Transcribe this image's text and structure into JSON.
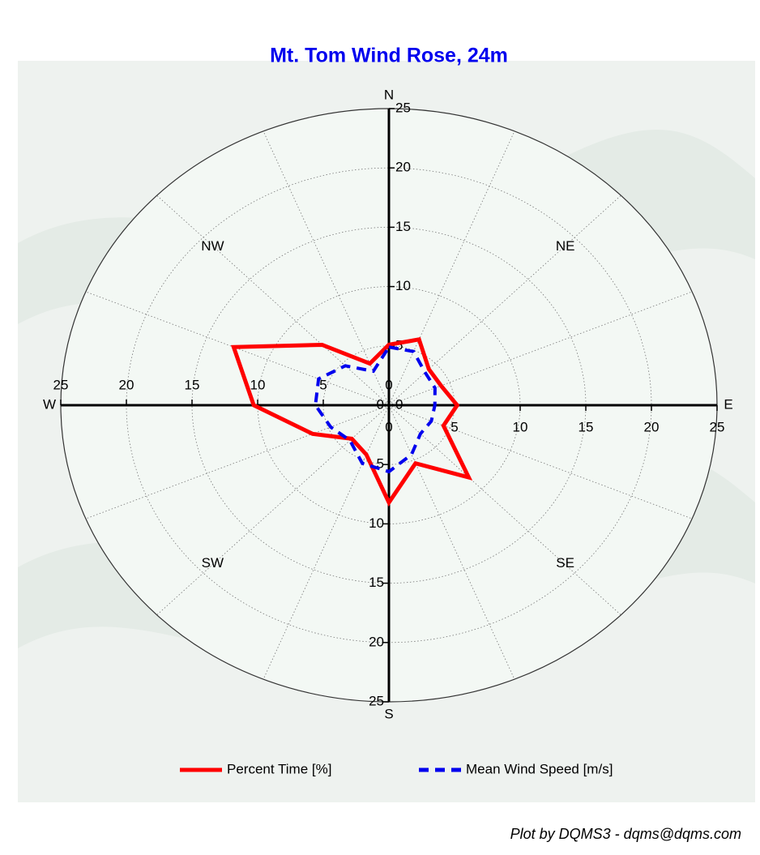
{
  "chart_data": {
    "type": "polar",
    "title": "Mt. Tom Wind Rose, 24m",
    "footer": "Plot by DQMS3 - dqms@dqms.com",
    "categories": [
      "N",
      null,
      "NE",
      null,
      "E",
      null,
      "SE",
      null,
      "S",
      null,
      "SW",
      null,
      "W",
      null,
      "NW",
      null
    ],
    "series": [
      {
        "name": "Percent Time [%]",
        "color": "#ff0000",
        "dash": false,
        "values": [
          5.1,
          6.0,
          4.3,
          4.3,
          5.2,
          4.5,
          8.6,
          5.3,
          8.2,
          4.5,
          4.0,
          6.3,
          10.3,
          12.8,
          7.2,
          3.8
        ]
      },
      {
        "name": "Mean Wind Speed [m/s]",
        "color": "#0000ee",
        "dash": true,
        "values": [
          4.9,
          4.9,
          3.9,
          3.8,
          3.5,
          3.5,
          3.4,
          4.5,
          5.6,
          5.3,
          4.2,
          4.8,
          5.6,
          5.8,
          4.7,
          3.1
        ]
      }
    ],
    "rlim": [
      0,
      25
    ],
    "rticks": [
      0,
      5,
      10,
      15,
      20,
      25
    ],
    "grid": true
  }
}
